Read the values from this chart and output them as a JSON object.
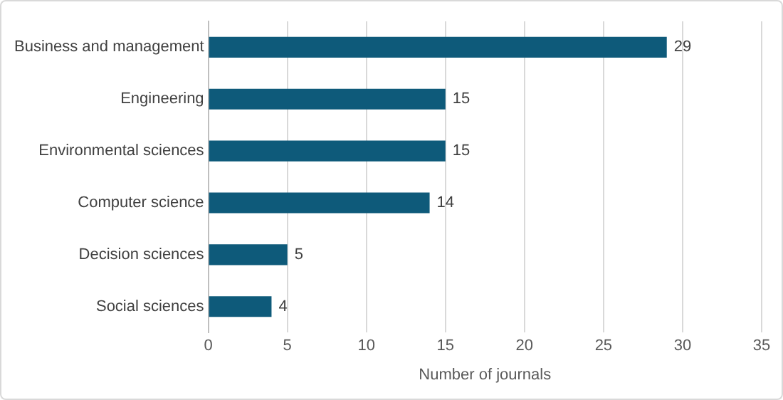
{
  "chart_data": {
    "type": "bar",
    "orientation": "horizontal",
    "xlabel": "Number of journals",
    "categories": [
      "Business and management",
      "Engineering",
      "Environmental sciences",
      "Computer science",
      "Decision sciences",
      "Social sciences"
    ],
    "values": [
      29,
      15,
      15,
      14,
      5,
      4
    ],
    "color": "#0e5a7a",
    "xlim": [
      0,
      35
    ],
    "xticks": [
      0,
      5,
      10,
      15,
      20,
      25,
      30,
      35
    ],
    "grid": "x",
    "data_labels": true,
    "legend": false
  }
}
